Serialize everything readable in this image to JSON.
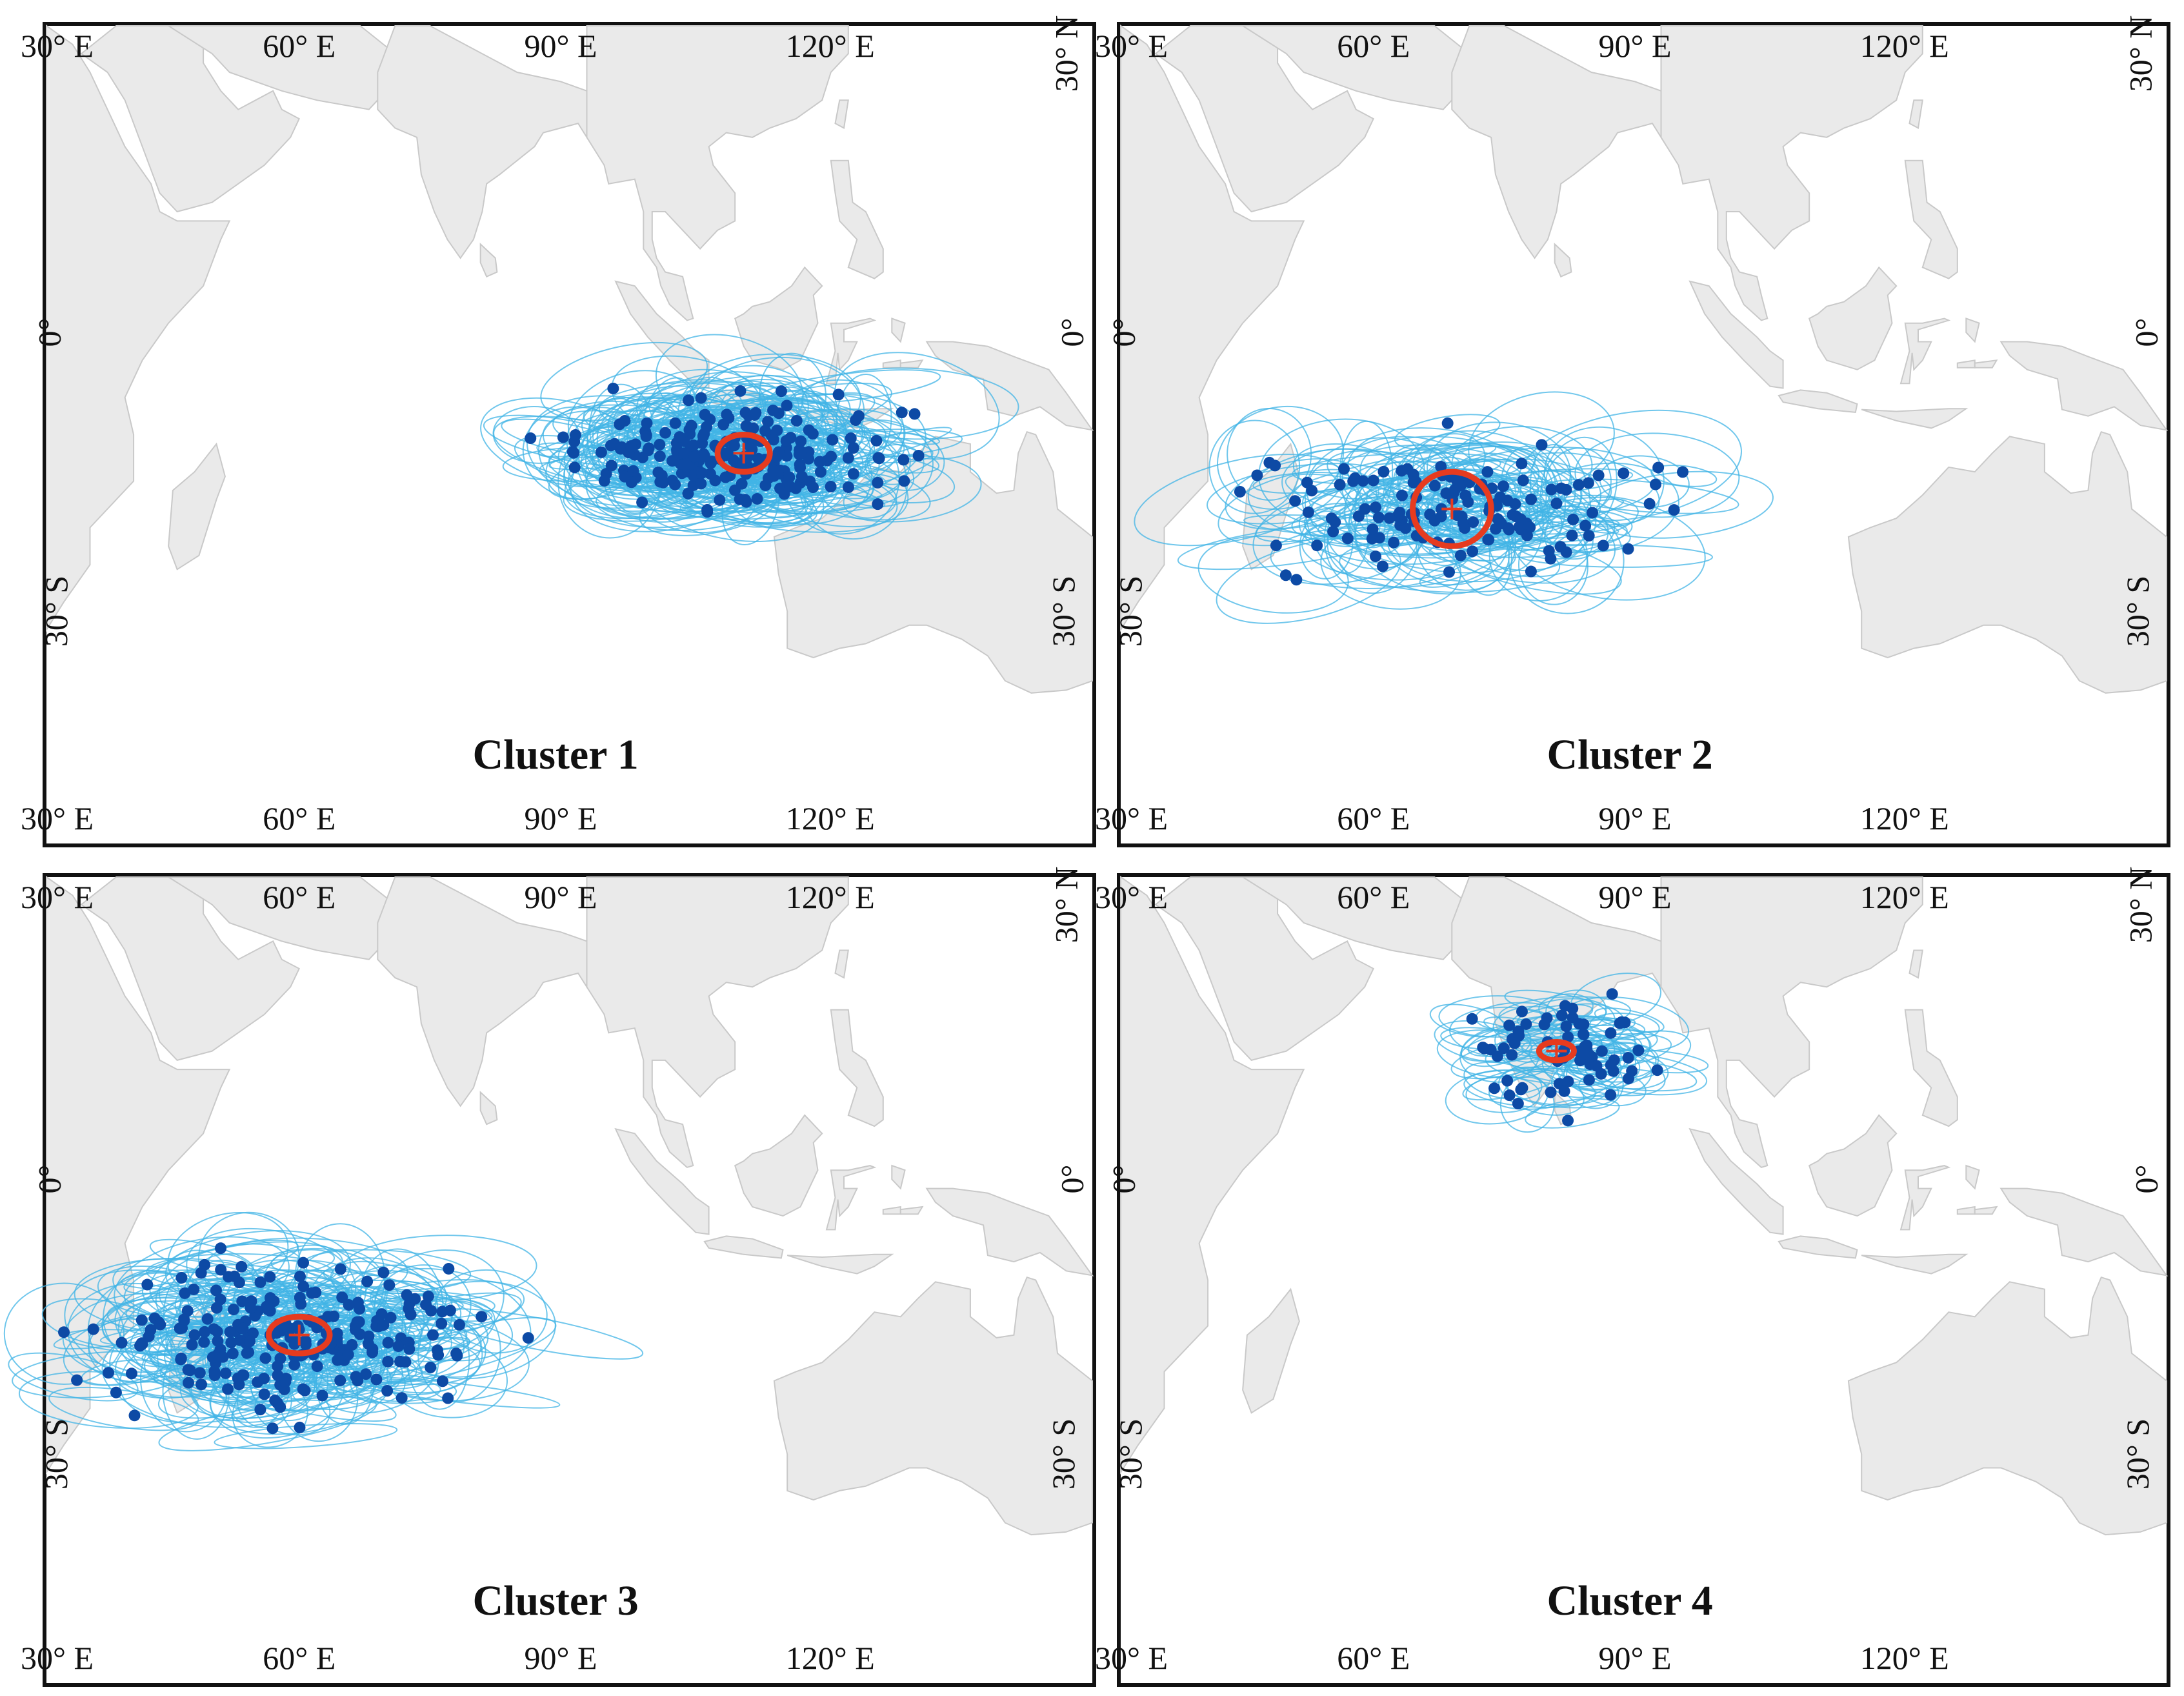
{
  "panels": [
    {
      "title": "Cluster 1",
      "top_labels": [
        "30° E",
        "60° E",
        "90° E",
        "120° E"
      ],
      "bottom_labels": [
        "30° E",
        "60° E",
        "90° E",
        "120° E"
      ],
      "left_labels": [
        "0°",
        "30° S"
      ],
      "right_labels": [
        "30° N",
        "0°",
        "30° S"
      ],
      "center": {
        "lon": 110,
        "lat": -13
      },
      "spread": {
        "lon": 14,
        "lat": 4
      },
      "mean_ellipse": {
        "lon": 110,
        "lat": -13,
        "rx": 3,
        "ry": 2
      }
    },
    {
      "title": "Cluster 2",
      "top_labels": [
        "30° E",
        "60° E",
        "90° E",
        "120° E"
      ],
      "bottom_labels": [
        "30° E",
        "60° E",
        "90° E",
        "120° E"
      ],
      "left_labels": [
        "0°",
        "30° S"
      ],
      "right_labels": [
        "30° N",
        "0°",
        "30° S"
      ],
      "center": {
        "lon": 68,
        "lat": -19
      },
      "spread": {
        "lon": 18,
        "lat": 5
      },
      "mean_ellipse": {
        "lon": 68,
        "lat": -19,
        "rx": 4.5,
        "ry": 4
      }
    },
    {
      "title": "Cluster 3",
      "top_labels": [
        "30° E",
        "60° E",
        "90° E",
        "120° E"
      ],
      "bottom_labels": [
        "30° E",
        "60° E",
        "90° E",
        "120° E"
      ],
      "left_labels": [
        "0°",
        "30° S"
      ],
      "right_labels": [
        "30° N",
        "0°",
        "30° S"
      ],
      "center": {
        "lon": 59,
        "lat": -17
      },
      "spread": {
        "lon": 17,
        "lat": 6
      },
      "mean_ellipse": {
        "lon": 59,
        "lat": -17,
        "rx": 3.5,
        "ry": 2
      }
    },
    {
      "title": "Cluster 4",
      "top_labels": [
        "30° E",
        "60° E",
        "90° E",
        "120° E"
      ],
      "bottom_labels": [
        "30° E",
        "60° E",
        "90° E",
        "120° E"
      ],
      "left_labels": [
        "0°",
        "30° S"
      ],
      "right_labels": [
        "30° N",
        "0°",
        "30° S"
      ],
      "center": {
        "lon": 80,
        "lat": 14
      },
      "spread": {
        "lon": 8,
        "lat": 5
      },
      "mean_ellipse": {
        "lon": 80,
        "lat": 14,
        "rx": 2,
        "ry": 1
      }
    }
  ],
  "colors": {
    "land": "#eaeaea",
    "land_stroke": "#c9c9c9",
    "ellipse": "#41b4e6",
    "points": "#0d4aa5",
    "mean": "#e63b1f"
  }
}
